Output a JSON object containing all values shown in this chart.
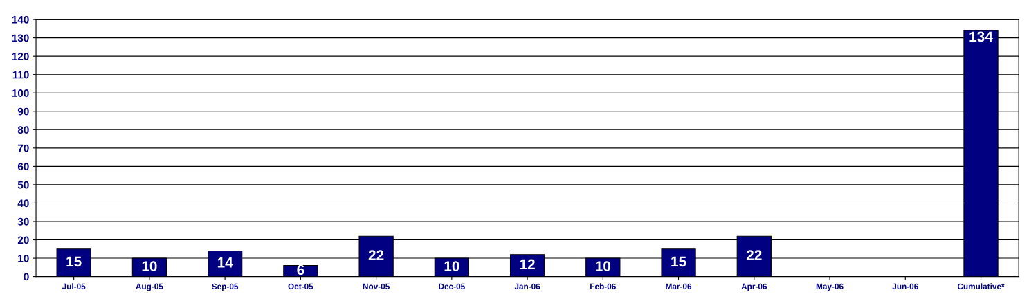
{
  "chart_data": {
    "type": "bar",
    "categories": [
      "Jul-05",
      "Aug-05",
      "Sep-05",
      "Oct-05",
      "Nov-05",
      "Dec-05",
      "Jan-06",
      "Feb-06",
      "Mar-06",
      "Apr-06",
      "May-06",
      "Jun-06",
      "Cumulative*"
    ],
    "values": [
      15,
      10,
      14,
      6,
      22,
      10,
      12,
      10,
      15,
      22,
      null,
      null,
      134
    ],
    "color": "#000080",
    "ylim": [
      0,
      140
    ],
    "yticks": [
      0,
      10,
      20,
      30,
      40,
      50,
      60,
      70,
      80,
      90,
      100,
      110,
      120,
      130,
      140
    ],
    "grid": "y",
    "data_labels": true
  }
}
